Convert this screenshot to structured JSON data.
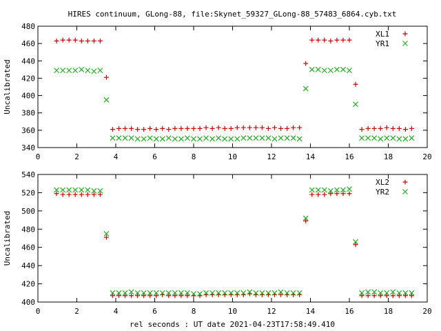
{
  "title": "HIRES continuum, GLong-88, file:Skynet_59327_GLong-88_57483_6864.cyb.txt",
  "xlabel": "rel seconds : UT date 2021-04-23T17:58:49.410",
  "colors": {
    "series1": "#cc0000",
    "series2": "#22aa22",
    "axes": "#000000"
  },
  "chart_data": [
    {
      "type": "scatter",
      "ylabel": "Uncalibrated",
      "xlim": [
        0,
        20
      ],
      "ylim": [
        340,
        480
      ],
      "xticks": [
        0,
        2,
        4,
        6,
        8,
        10,
        12,
        14,
        16,
        18,
        20
      ],
      "yticks": [
        340,
        360,
        380,
        400,
        420,
        440,
        460,
        480
      ],
      "legend": "top-right",
      "grid": false,
      "x": [
        0.96,
        1.28,
        1.6,
        1.92,
        2.24,
        2.56,
        2.88,
        3.2,
        3.52,
        3.84,
        4.16,
        4.48,
        4.8,
        5.12,
        5.44,
        5.76,
        6.08,
        6.4,
        6.72,
        7.04,
        7.36,
        7.68,
        8.0,
        8.32,
        8.64,
        8.96,
        9.28,
        9.6,
        9.92,
        10.24,
        10.56,
        10.88,
        11.2,
        11.52,
        11.84,
        12.16,
        12.48,
        12.8,
        13.12,
        13.44,
        13.76,
        14.08,
        14.4,
        14.72,
        15.04,
        15.36,
        15.68,
        16.0,
        16.32,
        16.64,
        16.96,
        17.28,
        17.6,
        17.92,
        18.24,
        18.56,
        18.88,
        19.2
      ],
      "series": [
        {
          "name": "XL1",
          "marker": "plus",
          "values": [
            463,
            464,
            464,
            464,
            463,
            463,
            463,
            463,
            421,
            361,
            362,
            362,
            362,
            361,
            361,
            362,
            361,
            362,
            361,
            362,
            362,
            362,
            362,
            362,
            363,
            362,
            363,
            362,
            362,
            363,
            363,
            363,
            363,
            363,
            362,
            363,
            362,
            362,
            363,
            363,
            437,
            464,
            464,
            464,
            463,
            464,
            464,
            464,
            413,
            361,
            362,
            362,
            362,
            363,
            362,
            362,
            361,
            362
          ]
        },
        {
          "name": "YR1",
          "marker": "cross",
          "values": [
            429,
            429,
            429,
            429,
            430,
            429,
            428,
            429,
            395,
            351,
            351,
            351,
            351,
            350,
            350,
            351,
            350,
            350,
            351,
            350,
            350,
            351,
            350,
            350,
            351,
            350,
            351,
            350,
            350,
            350,
            351,
            351,
            351,
            351,
            351,
            350,
            351,
            351,
            351,
            350,
            408,
            430,
            430,
            429,
            429,
            430,
            430,
            429,
            390,
            351,
            351,
            351,
            350,
            351,
            351,
            350,
            350,
            351
          ]
        }
      ]
    },
    {
      "type": "scatter",
      "ylabel": "Uncalibrated",
      "xlim": [
        0,
        20
      ],
      "ylim": [
        400,
        540
      ],
      "xticks": [
        0,
        2,
        4,
        6,
        8,
        10,
        12,
        14,
        16,
        18,
        20
      ],
      "yticks": [
        400,
        420,
        440,
        460,
        480,
        500,
        520,
        540
      ],
      "legend": "top-right",
      "grid": false,
      "x": [
        0.96,
        1.28,
        1.6,
        1.92,
        2.24,
        2.56,
        2.88,
        3.2,
        3.52,
        3.84,
        4.16,
        4.48,
        4.8,
        5.12,
        5.44,
        5.76,
        6.08,
        6.4,
        6.72,
        7.04,
        7.36,
        7.68,
        8.0,
        8.32,
        8.64,
        8.96,
        9.28,
        9.6,
        9.92,
        10.24,
        10.56,
        10.88,
        11.2,
        11.52,
        11.84,
        12.16,
        12.48,
        12.8,
        13.12,
        13.44,
        13.76,
        14.08,
        14.4,
        14.72,
        15.04,
        15.36,
        15.68,
        16.0,
        16.32,
        16.64,
        16.96,
        17.28,
        17.6,
        17.92,
        18.24,
        18.56,
        18.88,
        19.2
      ],
      "series": [
        {
          "name": "XL2",
          "marker": "plus",
          "values": [
            519,
            518,
            518,
            518,
            518,
            518,
            518,
            518,
            471,
            407,
            407,
            407,
            407,
            407,
            407,
            407,
            407,
            408,
            407,
            407,
            407,
            407,
            407,
            407,
            408,
            408,
            408,
            408,
            408,
            408,
            408,
            409,
            408,
            408,
            408,
            408,
            408,
            408,
            408,
            408,
            489,
            518,
            518,
            518,
            519,
            519,
            519,
            519,
            463,
            407,
            407,
            407,
            407,
            407,
            407,
            407,
            407,
            407
          ]
        },
        {
          "name": "YR2",
          "marker": "cross",
          "values": [
            523,
            523,
            523,
            523,
            523,
            523,
            522,
            522,
            475,
            410,
            410,
            410,
            411,
            410,
            410,
            410,
            410,
            410,
            410,
            410,
            410,
            410,
            409,
            409,
            410,
            410,
            410,
            410,
            410,
            410,
            410,
            411,
            410,
            410,
            410,
            410,
            411,
            410,
            410,
            410,
            492,
            523,
            523,
            523,
            522,
            523,
            523,
            524,
            466,
            410,
            411,
            411,
            410,
            410,
            411,
            410,
            410,
            410
          ]
        }
      ]
    }
  ]
}
